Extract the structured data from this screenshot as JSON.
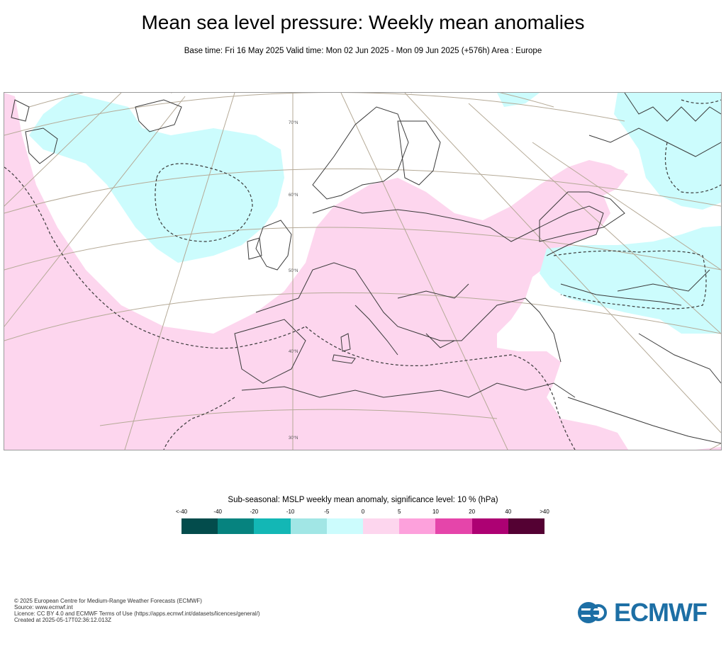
{
  "title": "Mean sea level pressure: Weekly mean anomalies",
  "subtitle": "Base time: Fri 16 May 2025 Valid time: Mon 02 Jun 2025 - Mon 09 Jun 2025 (+576h) Area : Europe",
  "map": {
    "latitude_labels": [
      "70°N",
      "60°N",
      "50°N",
      "40°N",
      "30°N"
    ],
    "colors": {
      "land_line": "#3a3a3a",
      "grid_line": "#b5aa97",
      "positive_anomaly": "#fdd6ee",
      "negative_anomaly": "#ccfcfd",
      "contour": "#3a3a3a"
    }
  },
  "legend": {
    "title": "Sub-seasonal: MSLP weekly mean anomaly, significance level: 10 % (hPa)",
    "tick_labels": [
      "<-40",
      "-40",
      "-20",
      "-10",
      "-5",
      "0",
      "5",
      "10",
      "20",
      "40",
      ">40"
    ],
    "colors": [
      "#034c4c",
      "#06837f",
      "#13b7b5",
      "#a1e6e5",
      "#ccfcfd",
      "#fdd6ee",
      "#fda1dc",
      "#e545aa",
      "#ad0173",
      "#540133"
    ]
  },
  "footer": {
    "lines": [
      "© 2025 European Centre for Medium-Range Weather Forecasts (ECMWF)",
      "Source: www.ecmwf.int",
      "Licence: CC BY 4.0 and ECMWF Terms of Use (https://apps.ecmwf.int/datasets/licences/general/)",
      "Created at 2025-05-17T02:36:12.013Z"
    ]
  },
  "logo": {
    "text": "ECMWF",
    "color": "#1d6fa5"
  }
}
